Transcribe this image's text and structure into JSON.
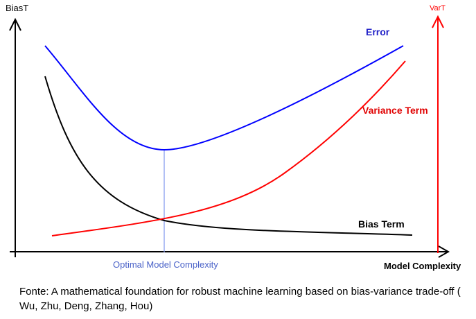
{
  "labels": {
    "left_axis": "BiasT",
    "right_axis": "VarT",
    "error": "Error",
    "variance": "Variance Term",
    "bias": "Bias Term",
    "optimal": "Optimal Model Complexity",
    "x_axis": "Model Complexity"
  },
  "caption": "Fonte: A mathematical foundation for robust machine learning based on bias-variance trade-off ( Wu, Zhu, Deng, Zhang, Hou)",
  "colors": {
    "error": "#0000ff",
    "variance": "#ff0000",
    "bias": "#000000",
    "optimal_line": "#7f95ee",
    "optimal_text": "#4a62c8",
    "right_axis": "#ff0000",
    "left_axis": "#000000"
  }
}
